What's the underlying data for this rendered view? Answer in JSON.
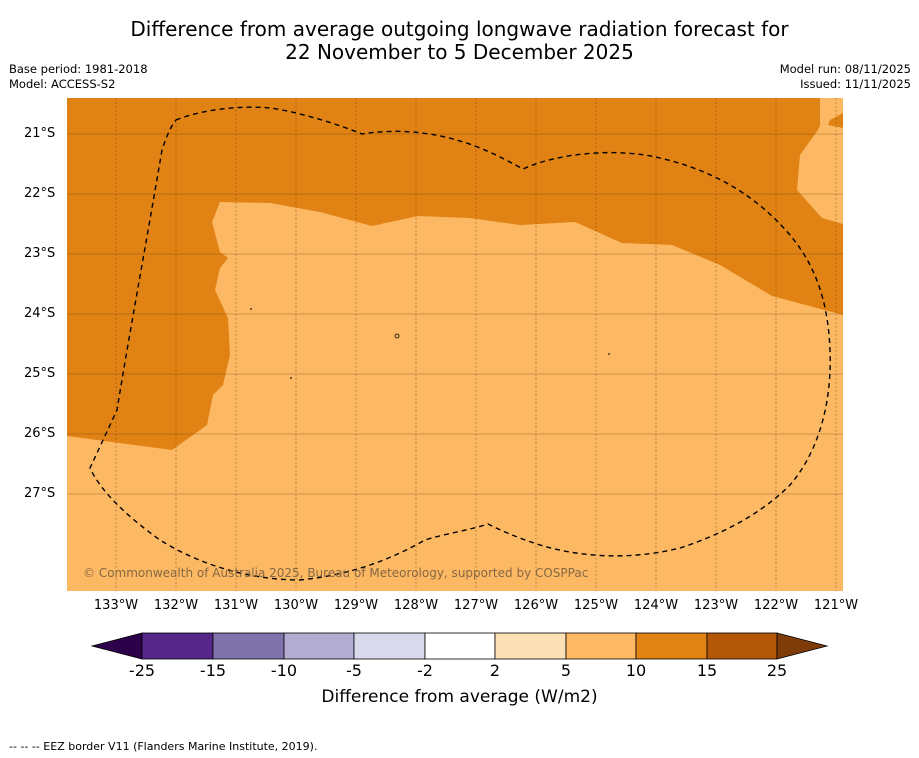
{
  "title_line1": "Difference from average outgoing longwave radiation forecast for",
  "title_line2": "22 November to 5 December 2025",
  "base_period": "Base period: 1981-2018",
  "model": "Model: ACCESS-S2",
  "model_run": "Model run: 08/11/2025",
  "issued": "Issued: 11/11/2025",
  "lat_labels": [
    "21°S",
    "22°S",
    "23°S",
    "24°S",
    "25°S",
    "26°S",
    "27°S"
  ],
  "lon_labels": [
    "133°W",
    "132°W",
    "131°W",
    "130°W",
    "129°W",
    "128°W",
    "127°W",
    "126°W",
    "125°W",
    "124°W",
    "123°W",
    "122°W",
    "121°W"
  ],
  "credit": "© Commonwealth of Australia 2025, Bureau of Meteorology, supported by COSPPac",
  "colorbar": {
    "labels": [
      "-25",
      "-15",
      "-10",
      "-5",
      "-2",
      "2",
      "5",
      "10",
      "15",
      "25"
    ],
    "colors": [
      "#2d004b",
      "#542788",
      "#8073ac",
      "#b2abd2",
      "#d8daeb",
      "#ffffff",
      "#fee0b6",
      "#fdb863",
      "#e08214",
      "#b35806",
      "#7f3b08"
    ],
    "title": "Difference from average (W/m2)"
  },
  "map_colors": {
    "band_5_10": "#fdb863",
    "band_10_15": "#e08214",
    "grid": "#7a4a10"
  },
  "footnote": "--  --  -- EEZ border V11 (Flanders Marine Institute, 2019)."
}
